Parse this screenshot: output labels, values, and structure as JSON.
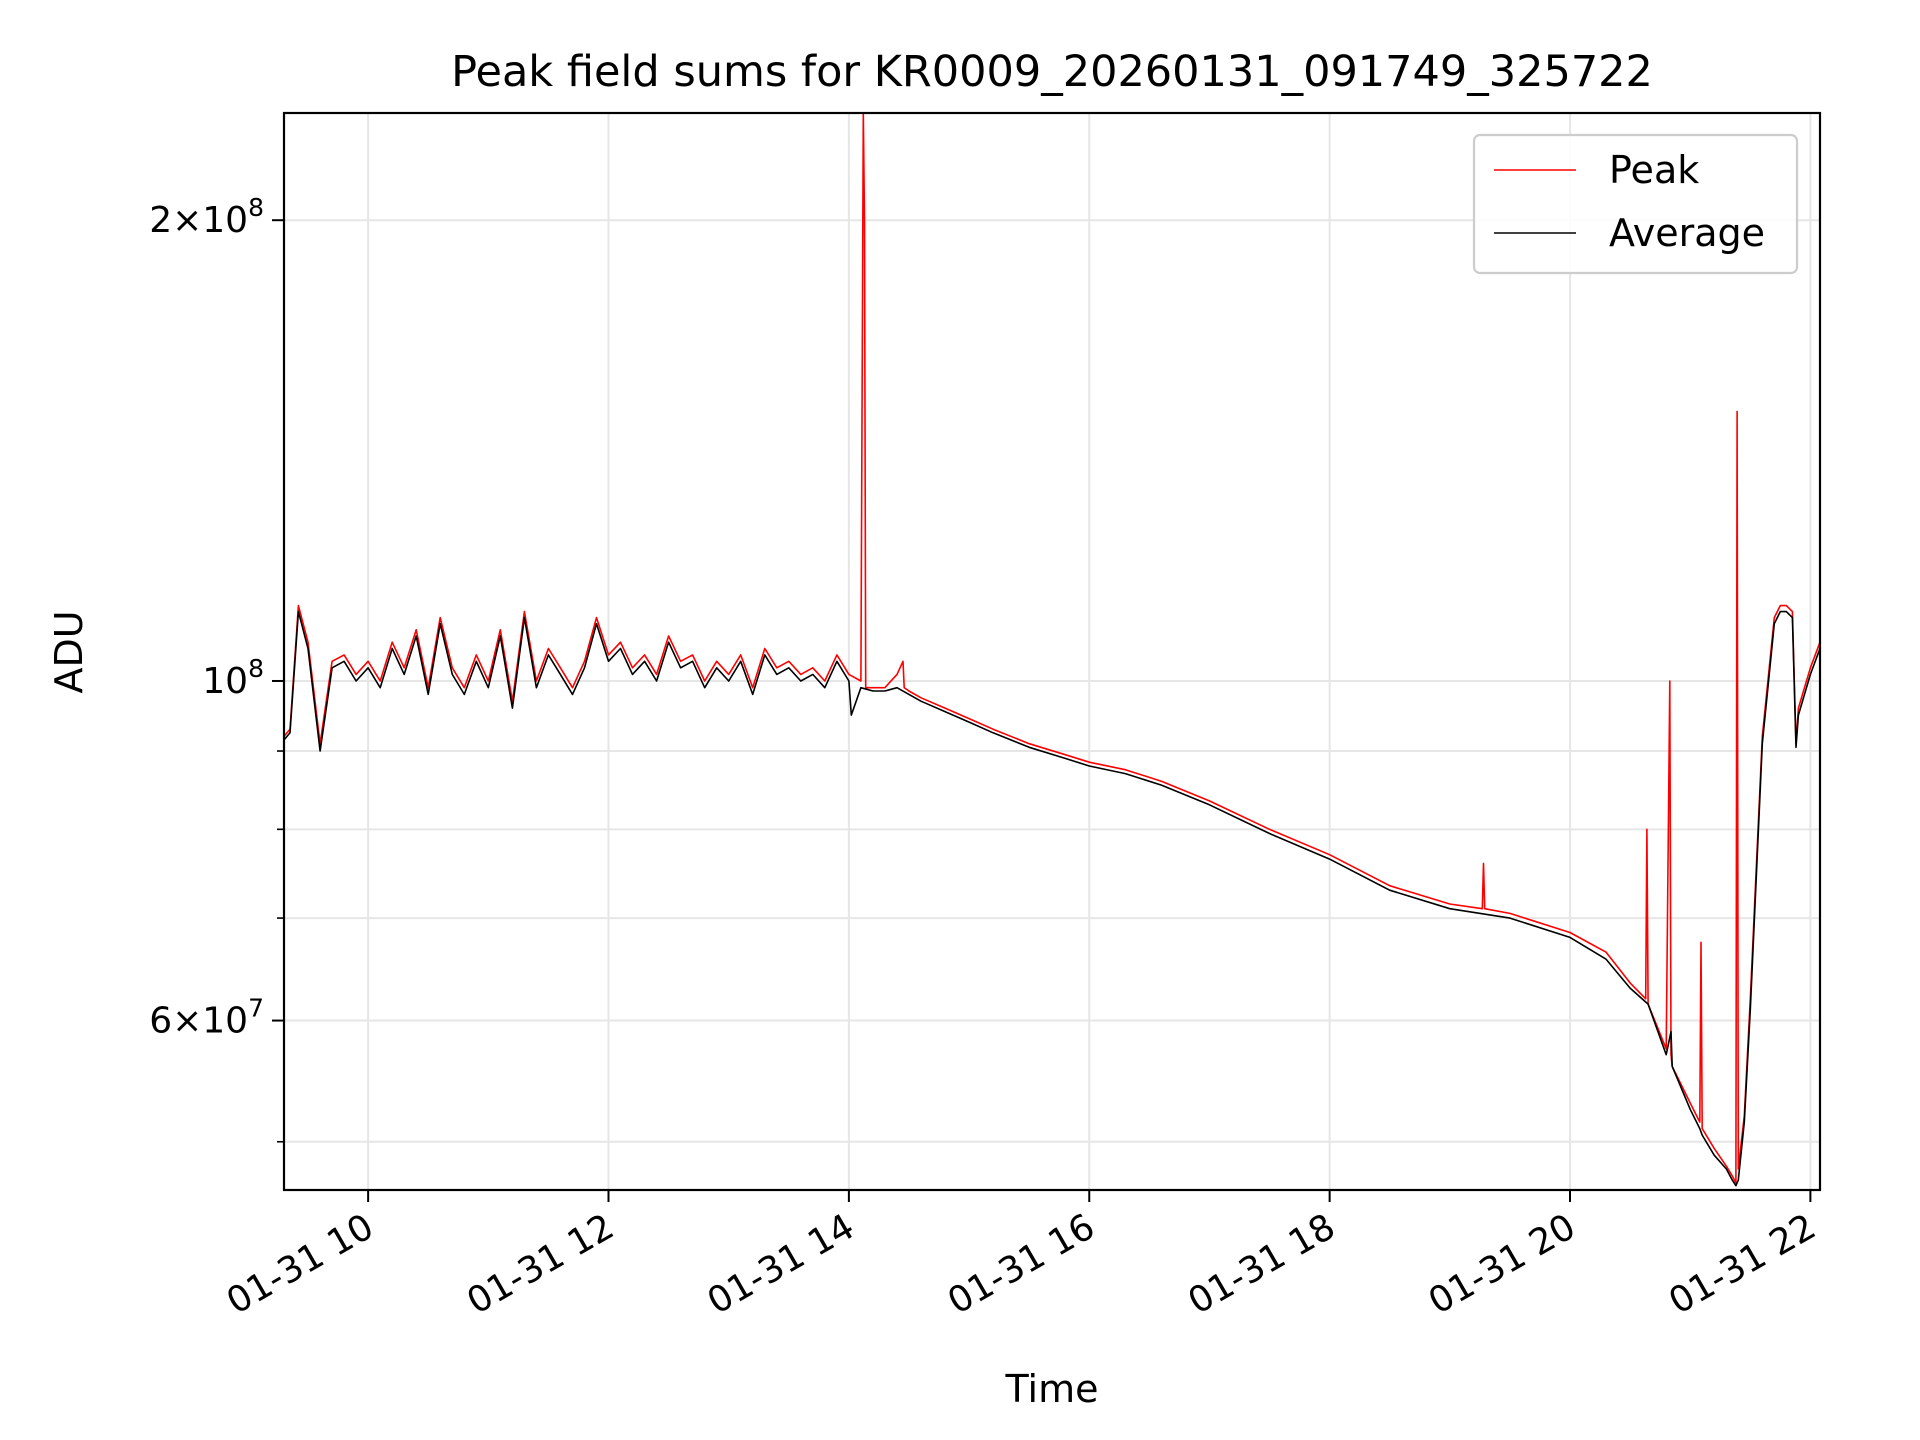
{
  "chart_data": {
    "type": "line",
    "title": "Peak field sums for KR0009_20260131_091749_325722",
    "xlabel": "Time",
    "ylabel": "ADU",
    "x_start": "01-31 09:18",
    "x_end": "01-31 22:05",
    "xlim_hours": [
      9.3,
      22.08
    ],
    "ylim": [
      46500000,
      235000000
    ],
    "yscale": "log",
    "grid": true,
    "legend_position": "top-right",
    "x_ticks": [
      {
        "hour": 10,
        "label": "01-31 10"
      },
      {
        "hour": 12,
        "label": "01-31 12"
      },
      {
        "hour": 14,
        "label": "01-31 14"
      },
      {
        "hour": 16,
        "label": "01-31 16"
      },
      {
        "hour": 18,
        "label": "01-31 18"
      },
      {
        "hour": 20,
        "label": "01-31 20"
      },
      {
        "hour": 22,
        "label": "01-31 22"
      }
    ],
    "y_major_ticks": [
      {
        "value": 60000000,
        "mant": "6",
        "exp": "7"
      },
      {
        "value": 100000000,
        "mant": "",
        "exp": "8"
      },
      {
        "value": 200000000,
        "mant": "2",
        "exp": "8"
      }
    ],
    "y_minor_ticks": [
      50000000,
      70000000,
      80000000,
      90000000
    ],
    "series": [
      {
        "name": "Peak",
        "color": "#ff0000",
        "x": [
          9.3,
          9.35,
          9.42,
          9.5,
          9.6,
          9.7,
          9.8,
          9.9,
          10.0,
          10.1,
          10.2,
          10.3,
          10.4,
          10.5,
          10.6,
          10.7,
          10.8,
          10.9,
          11.0,
          11.1,
          11.2,
          11.3,
          11.4,
          11.5,
          11.6,
          11.7,
          11.8,
          11.9,
          12.0,
          12.1,
          12.2,
          12.3,
          12.4,
          12.5,
          12.6,
          12.7,
          12.8,
          12.9,
          13.0,
          13.1,
          13.2,
          13.3,
          13.4,
          13.5,
          13.6,
          13.7,
          13.8,
          13.9,
          14.0,
          14.1,
          14.12,
          14.13,
          14.14,
          14.2,
          14.3,
          14.4,
          14.45,
          14.46,
          14.5,
          14.6,
          14.8,
          15.0,
          15.2,
          15.5,
          15.8,
          16.0,
          16.3,
          16.6,
          17.0,
          17.5,
          18.0,
          18.5,
          19.0,
          19.27,
          19.28,
          19.29,
          19.5,
          20.0,
          20.3,
          20.5,
          20.63,
          20.64,
          20.65,
          20.8,
          20.83,
          20.84,
          20.85,
          21.0,
          21.08,
          21.09,
          21.1,
          21.2,
          21.3,
          21.35,
          21.38,
          21.39,
          21.4,
          21.45,
          21.5,
          21.6,
          21.7,
          21.75,
          21.8,
          21.85,
          21.88,
          21.9,
          22.0,
          22.08
        ],
        "values": [
          92000000,
          93000000,
          112000000,
          106000000,
          91000000,
          103000000,
          104000000,
          101000000,
          103000000,
          100000000,
          106000000,
          102000000,
          108000000,
          99000000,
          110000000,
          102000000,
          99000000,
          104000000,
          100000000,
          108000000,
          97000000,
          111000000,
          100000000,
          105000000,
          102000000,
          99000000,
          103000000,
          110000000,
          104000000,
          106000000,
          102000000,
          104000000,
          101000000,
          107000000,
          103000000,
          104000000,
          100000000,
          103000000,
          101000000,
          104000000,
          99000000,
          105000000,
          102000000,
          103000000,
          101000000,
          102000000,
          100000000,
          104000000,
          101000000,
          100000000,
          235000000,
          200000000,
          99000000,
          99000000,
          99000000,
          101000000,
          103000000,
          99000000,
          98500000,
          97500000,
          96000000,
          94500000,
          93000000,
          91000000,
          89500000,
          88500000,
          87500000,
          86000000,
          83500000,
          80000000,
          77000000,
          73500000,
          71500000,
          71000000,
          76000000,
          71000000,
          70500000,
          68500000,
          66500000,
          63500000,
          62000000,
          80000000,
          61500000,
          57500000,
          100000000,
          57000000,
          56000000,
          53000000,
          51500000,
          67500000,
          51000000,
          49500000,
          48200000,
          47500000,
          47000000,
          150000000,
          48000000,
          52000000,
          62000000,
          92000000,
          110000000,
          112000000,
          112000000,
          111000000,
          91000000,
          96000000,
          102000000,
          106000000
        ]
      },
      {
        "name": "Average",
        "color": "#000000",
        "x": [
          9.3,
          9.35,
          9.42,
          9.5,
          9.6,
          9.7,
          9.8,
          9.9,
          10.0,
          10.1,
          10.2,
          10.3,
          10.4,
          10.5,
          10.6,
          10.7,
          10.8,
          10.9,
          11.0,
          11.1,
          11.2,
          11.3,
          11.4,
          11.5,
          11.6,
          11.7,
          11.8,
          11.9,
          12.0,
          12.1,
          12.2,
          12.3,
          12.4,
          12.5,
          12.6,
          12.7,
          12.8,
          12.9,
          13.0,
          13.1,
          13.2,
          13.3,
          13.4,
          13.5,
          13.6,
          13.7,
          13.8,
          13.9,
          14.0,
          14.02,
          14.1,
          14.2,
          14.3,
          14.4,
          14.5,
          14.6,
          14.8,
          15.0,
          15.2,
          15.5,
          15.8,
          16.0,
          16.3,
          16.6,
          17.0,
          17.5,
          18.0,
          18.5,
          19.0,
          19.5,
          20.0,
          20.3,
          20.5,
          20.65,
          20.8,
          20.84,
          20.85,
          21.0,
          21.08,
          21.1,
          21.2,
          21.3,
          21.35,
          21.38,
          21.4,
          21.45,
          21.5,
          21.6,
          21.7,
          21.75,
          21.8,
          21.85,
          21.88,
          21.9,
          22.0,
          22.08
        ],
        "values": [
          91500000,
          92500000,
          111000000,
          105000000,
          90000000,
          102000000,
          103000000,
          100000000,
          102000000,
          99000000,
          105000000,
          101000000,
          107000000,
          98000000,
          109000000,
          101000000,
          98000000,
          103000000,
          99000000,
          107000000,
          96000000,
          110000000,
          99000000,
          104000000,
          101000000,
          98000000,
          102000000,
          109000000,
          103000000,
          105000000,
          101000000,
          103000000,
          100000000,
          106000000,
          102000000,
          103000000,
          99000000,
          102000000,
          100000000,
          103000000,
          98000000,
          104000000,
          101000000,
          102000000,
          100000000,
          101000000,
          99000000,
          103000000,
          100000000,
          95000000,
          99000000,
          98500000,
          98500000,
          99000000,
          98000000,
          97000000,
          95500000,
          94000000,
          92500000,
          90500000,
          89000000,
          88000000,
          87000000,
          85500000,
          83000000,
          79500000,
          76500000,
          73000000,
          71000000,
          70000000,
          68000000,
          65800000,
          63000000,
          61500000,
          57000000,
          59000000,
          56000000,
          52500000,
          51000000,
          50500000,
          49000000,
          48000000,
          47200000,
          46800000,
          47200000,
          51500000,
          61000000,
          91000000,
          109000000,
          111000000,
          111000000,
          110000000,
          90500000,
          95000000,
          101000000,
          105000000
        ]
      }
    ]
  }
}
